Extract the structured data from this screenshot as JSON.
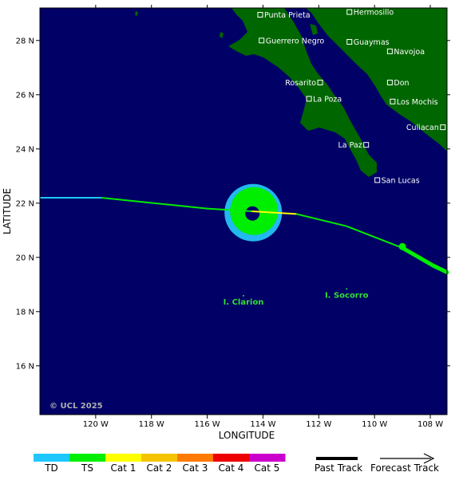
{
  "axes": {
    "x_label": "LONGITUDE",
    "y_label": "LATITUDE",
    "lon_range": [
      -122,
      -107.4
    ],
    "lat_range": [
      14.2,
      29.2
    ],
    "lon_ticks": [
      {
        "value": -120,
        "label": "120 W"
      },
      {
        "value": -118,
        "label": "118 W"
      },
      {
        "value": -116,
        "label": "116 W"
      },
      {
        "value": -114,
        "label": "114 W"
      },
      {
        "value": -112,
        "label": "112 W"
      },
      {
        "value": -110,
        "label": "110 W"
      },
      {
        "value": -108,
        "label": "108 W"
      }
    ],
    "lat_ticks": [
      {
        "value": 28,
        "label": "28 N"
      },
      {
        "value": 26,
        "label": "26 N"
      },
      {
        "value": 24,
        "label": "24 N"
      },
      {
        "value": 22,
        "label": "22 N"
      },
      {
        "value": 20,
        "label": "20 N"
      },
      {
        "value": 18,
        "label": "18 N"
      },
      {
        "value": 16,
        "label": "16 N"
      }
    ]
  },
  "cities": [
    {
      "name": "Punta Prieta",
      "lon": -114.1,
      "lat": 28.95
    },
    {
      "name": "Hermosillo",
      "lon": -110.9,
      "lat": 29.05
    },
    {
      "name": "Guerrero Negro",
      "lon": -114.05,
      "lat": 28.0
    },
    {
      "name": "Guaymas",
      "lon": -110.9,
      "lat": 27.95
    },
    {
      "name": "Navojoa",
      "lon": -109.45,
      "lat": 27.6
    },
    {
      "name": "Rosarito",
      "lon": -111.95,
      "lat": 26.45
    },
    {
      "name": "Don",
      "lon": -109.45,
      "lat": 26.45
    },
    {
      "name": "La Poza",
      "lon": -112.35,
      "lat": 25.85
    },
    {
      "name": "Los Mochis",
      "lon": -109.35,
      "lat": 25.75
    },
    {
      "name": "Culiacan",
      "lon": -107.55,
      "lat": 24.8
    },
    {
      "name": "La Paz",
      "lon": -110.3,
      "lat": 24.15
    },
    {
      "name": "San Lucas",
      "lon": -109.9,
      "lat": 22.85
    }
  ],
  "islands": [
    {
      "name": "I. Clarion",
      "lon": -114.7,
      "lat": 18.35
    },
    {
      "name": "I. Socorro",
      "lon": -111.0,
      "lat": 18.6
    }
  ],
  "copyright": "© UCL 2025",
  "storm": {
    "center": {
      "lon": -114.35,
      "lat": 21.65
    },
    "past_track": [
      {
        "lon": -122.0,
        "lat": 22.2,
        "category": "TD"
      },
      {
        "lon": -119.8,
        "lat": 22.2,
        "category": "TS"
      },
      {
        "lon": -116.0,
        "lat": 21.8,
        "category": "TS"
      },
      {
        "lon": -114.4,
        "lat": 21.7,
        "category": "Cat 1"
      },
      {
        "lon": -112.8,
        "lat": 21.6,
        "category": "TS"
      },
      {
        "lon": -111.0,
        "lat": 21.15,
        "category": "TS"
      },
      {
        "lon": -109.0,
        "lat": 20.35,
        "category": "TS"
      }
    ],
    "forecast_track": [
      {
        "lon": -109.0,
        "lat": 20.35
      },
      {
        "lon": -107.9,
        "lat": 19.7
      },
      {
        "lon": -107.4,
        "lat": 19.45
      }
    ],
    "forecast_point": {
      "lon": -109.0,
      "lat": 20.4
    }
  },
  "legend": {
    "categories": [
      {
        "label": "TD",
        "color": "#1ec8ff"
      },
      {
        "label": "TS",
        "color": "#00ee00"
      },
      {
        "label": "Cat 1",
        "color": "#ffff00"
      },
      {
        "label": "Cat 2",
        "color": "#f5c400"
      },
      {
        "label": "Cat 3",
        "color": "#ff7a00"
      },
      {
        "label": "Cat 4",
        "color": "#ee0000"
      },
      {
        "label": "Cat 5",
        "color": "#cc00cc"
      }
    ],
    "past_label": "Past Track",
    "forecast_label": "Forecast Track"
  },
  "colors": {
    "ocean": "#000066",
    "land": "#006600",
    "wind_outer": "#22b8f0",
    "wind_inner": "#00ee00",
    "eye": "#000066"
  }
}
